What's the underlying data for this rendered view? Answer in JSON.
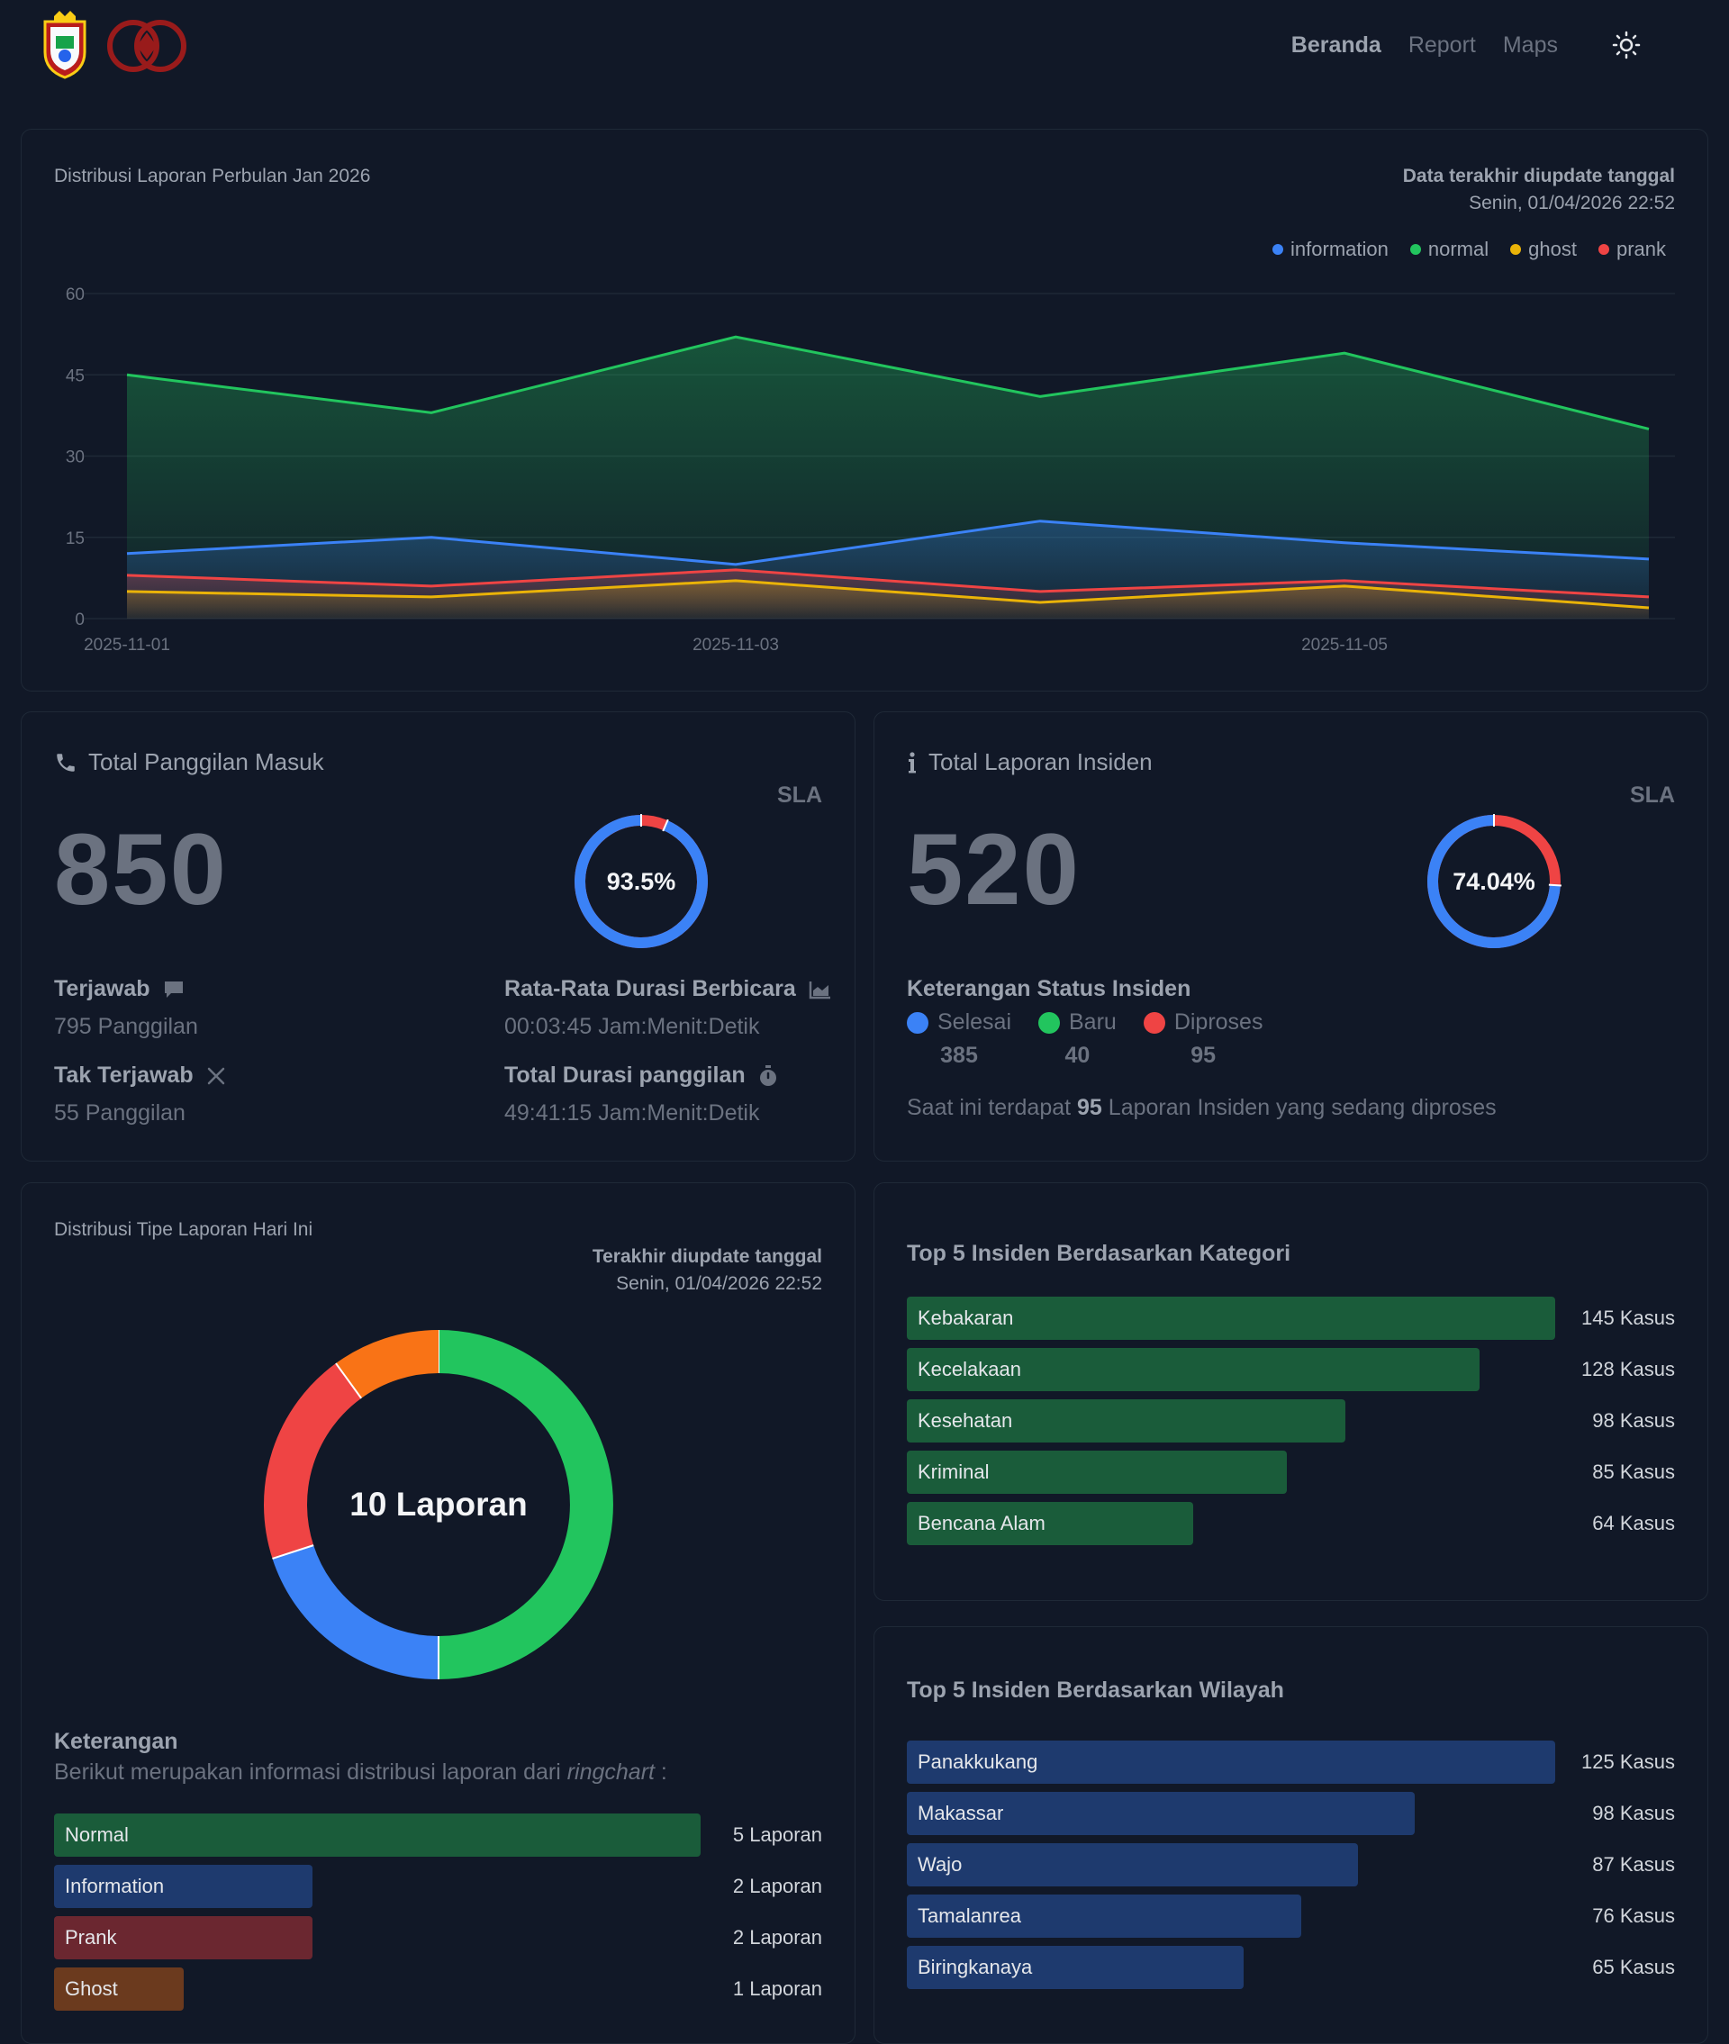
{
  "nav": {
    "items": [
      {
        "label": "Beranda",
        "active": true
      },
      {
        "label": "Report",
        "active": false
      },
      {
        "label": "Maps",
        "active": false
      }
    ],
    "theme_icon": "sun-icon"
  },
  "area_card": {
    "title": "Distribusi Laporan Perbulan Jan 2026",
    "update_label": "Data terakhir diupdate tanggal",
    "update_date": "Senin, 01/04/2026 22:52"
  },
  "chart_data": {
    "type": "area",
    "title": "Distribusi Laporan Perbulan Jan 2026",
    "x_ticks": [
      "2025-11-01",
      "2025-11-03",
      "2025-11-05"
    ],
    "y_ticks": [
      0,
      15,
      30,
      45,
      60
    ],
    "ylim": [
      0,
      60
    ],
    "grid": true,
    "legend_position": "top-right",
    "series": [
      {
        "name": "information",
        "color": "#3b82f6",
        "values": [
          12,
          15,
          10,
          18,
          14,
          11
        ]
      },
      {
        "name": "normal",
        "color": "#22c55e",
        "values": [
          45,
          38,
          52,
          41,
          49,
          35
        ]
      },
      {
        "name": "ghost",
        "color": "#eab308",
        "values": [
          5,
          4,
          7,
          3,
          6,
          2
        ]
      },
      {
        "name": "prank",
        "color": "#ef4444",
        "values": [
          8,
          6,
          9,
          5,
          7,
          4
        ]
      }
    ]
  },
  "calls": {
    "title": "Total Panggilan Masuk",
    "total": "850",
    "sla_label": "SLA",
    "sla_value": "93.5%",
    "sla_fraction": 0.935,
    "answered_label": "Terjawab",
    "answered_value": "795 Panggilan",
    "unanswered_label": "Tak Terjawab",
    "unanswered_value": "55 Panggilan",
    "avg_label": "Rata-Rata Durasi Berbicara",
    "avg_value": "00:03:45 Jam:Menit:Detik",
    "total_dur_label": "Total Durasi panggilan",
    "total_dur_value": "49:41:15 Jam:Menit:Detik"
  },
  "incidents": {
    "title": "Total Laporan Insiden",
    "total": "520",
    "sla_label": "SLA",
    "sla_value": "74.04%",
    "sla_fraction": 0.7404,
    "status_title": "Keterangan Status Insiden",
    "statuses": [
      {
        "label": "Selesai",
        "value": "385",
        "color": "#3b82f6"
      },
      {
        "label": "Baru",
        "value": "40",
        "color": "#22c55e"
      },
      {
        "label": "Diproses",
        "value": "95",
        "color": "#ef4444"
      }
    ],
    "note_prefix": "Saat ini terdapat",
    "note_count": "95",
    "note_suffix": "Laporan Insiden yang sedang diproses"
  },
  "ring_card": {
    "title": "Distribusi Tipe Laporan Hari Ini",
    "update_label": "Terakhir diupdate tanggal",
    "update_date": "Senin, 01/04/2026 22:52",
    "center_text": "10 Laporan",
    "keterangan_title": "Keterangan",
    "keterangan_desc": "Berikut merupakan informasi distribusi laporan dari",
    "keterangan_em": "ringchart",
    "keterangan_tail": " :",
    "items": [
      {
        "label": "Normal",
        "value": "5 Laporan",
        "count": 5,
        "color": "#22c55e",
        "bar": "#1a5c3a"
      },
      {
        "label": "Information",
        "value": "2 Laporan",
        "count": 2,
        "color": "#3b82f6",
        "bar": "#1e3a6e"
      },
      {
        "label": "Prank",
        "value": "2 Laporan",
        "count": 2,
        "color": "#ef4444",
        "bar": "#6b2730"
      },
      {
        "label": "Ghost",
        "value": "1 Laporan",
        "count": 1,
        "color": "#f97316",
        "bar": "#6b3a1e"
      }
    ]
  },
  "top_category": {
    "title": "Top 5 Insiden Berdasarkan Kategori",
    "items": [
      {
        "label": "Kebakaran",
        "value": "145 Kasus",
        "count": 145
      },
      {
        "label": "Kecelakaan",
        "value": "128 Kasus",
        "count": 128
      },
      {
        "label": "Kesehatan",
        "value": "98 Kasus",
        "count": 98
      },
      {
        "label": "Kriminal",
        "value": "85 Kasus",
        "count": 85
      },
      {
        "label": "Bencana Alam",
        "value": "64 Kasus",
        "count": 64
      }
    ]
  },
  "top_region": {
    "title": "Top 5 Insiden Berdasarkan Wilayah",
    "items": [
      {
        "label": "Panakkukang",
        "value": "125 Kasus",
        "count": 125
      },
      {
        "label": "Makassar",
        "value": "98 Kasus",
        "count": 98
      },
      {
        "label": "Wajo",
        "value": "87 Kasus",
        "count": 87
      },
      {
        "label": "Tamalanrea",
        "value": "76 Kasus",
        "count": 76
      },
      {
        "label": "Biringkanaya",
        "value": "65 Kasus",
        "count": 65
      }
    ]
  }
}
